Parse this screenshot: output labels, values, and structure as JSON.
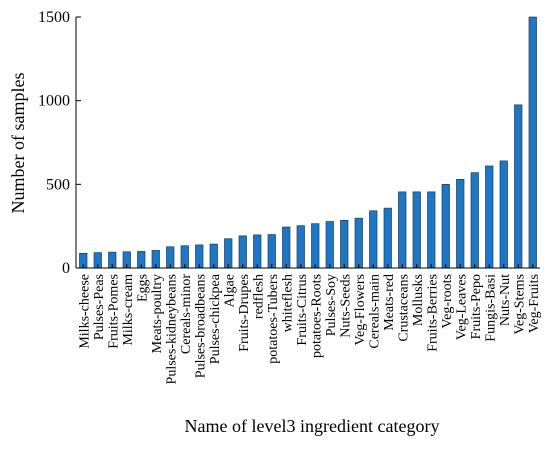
{
  "chart_data": {
    "type": "bar",
    "xlabel": "Name of level3 ingredient category",
    "ylabel": "Number of samples",
    "ylim": [
      0,
      1500
    ],
    "yticks": [
      0,
      500,
      1000,
      1500
    ],
    "grid": false,
    "bar_color": "#1f77c4",
    "categories": [
      "Milks-cheese",
      "Pulses-Peas",
      "Fruits-Pomes",
      "Milks-cream",
      "Eggs",
      "Meats-poultry",
      "Pulses-kidneybeans",
      "Cereals-minor",
      "Pulses-broadbeans",
      "Pulses-chickpea",
      "Algae",
      "Fruits-Drupes",
      "redflesh",
      "potatoes-Tubers",
      "whiteflesh",
      "Fruits-Citrus",
      "potatoes-Roots",
      "Pulses-Soy",
      "Nuts-Seeds",
      "Veg-Flowers",
      "Cereals-main",
      "Meats-red",
      "Crustaceans",
      "Mollusks",
      "Fruits-Berries",
      "Veg-roots",
      "Veg-Leaves",
      "Fruits-Pepo",
      "Fungis-Basi",
      "Nuts-Nut",
      "Veg-Stems",
      "Veg-Fruits"
    ],
    "values": [
      88,
      92,
      95,
      97,
      99,
      105,
      127,
      133,
      138,
      143,
      175,
      192,
      198,
      200,
      245,
      253,
      265,
      278,
      285,
      298,
      342,
      358,
      455,
      455,
      455,
      500,
      530,
      570,
      610,
      640,
      975,
      1500
    ]
  }
}
